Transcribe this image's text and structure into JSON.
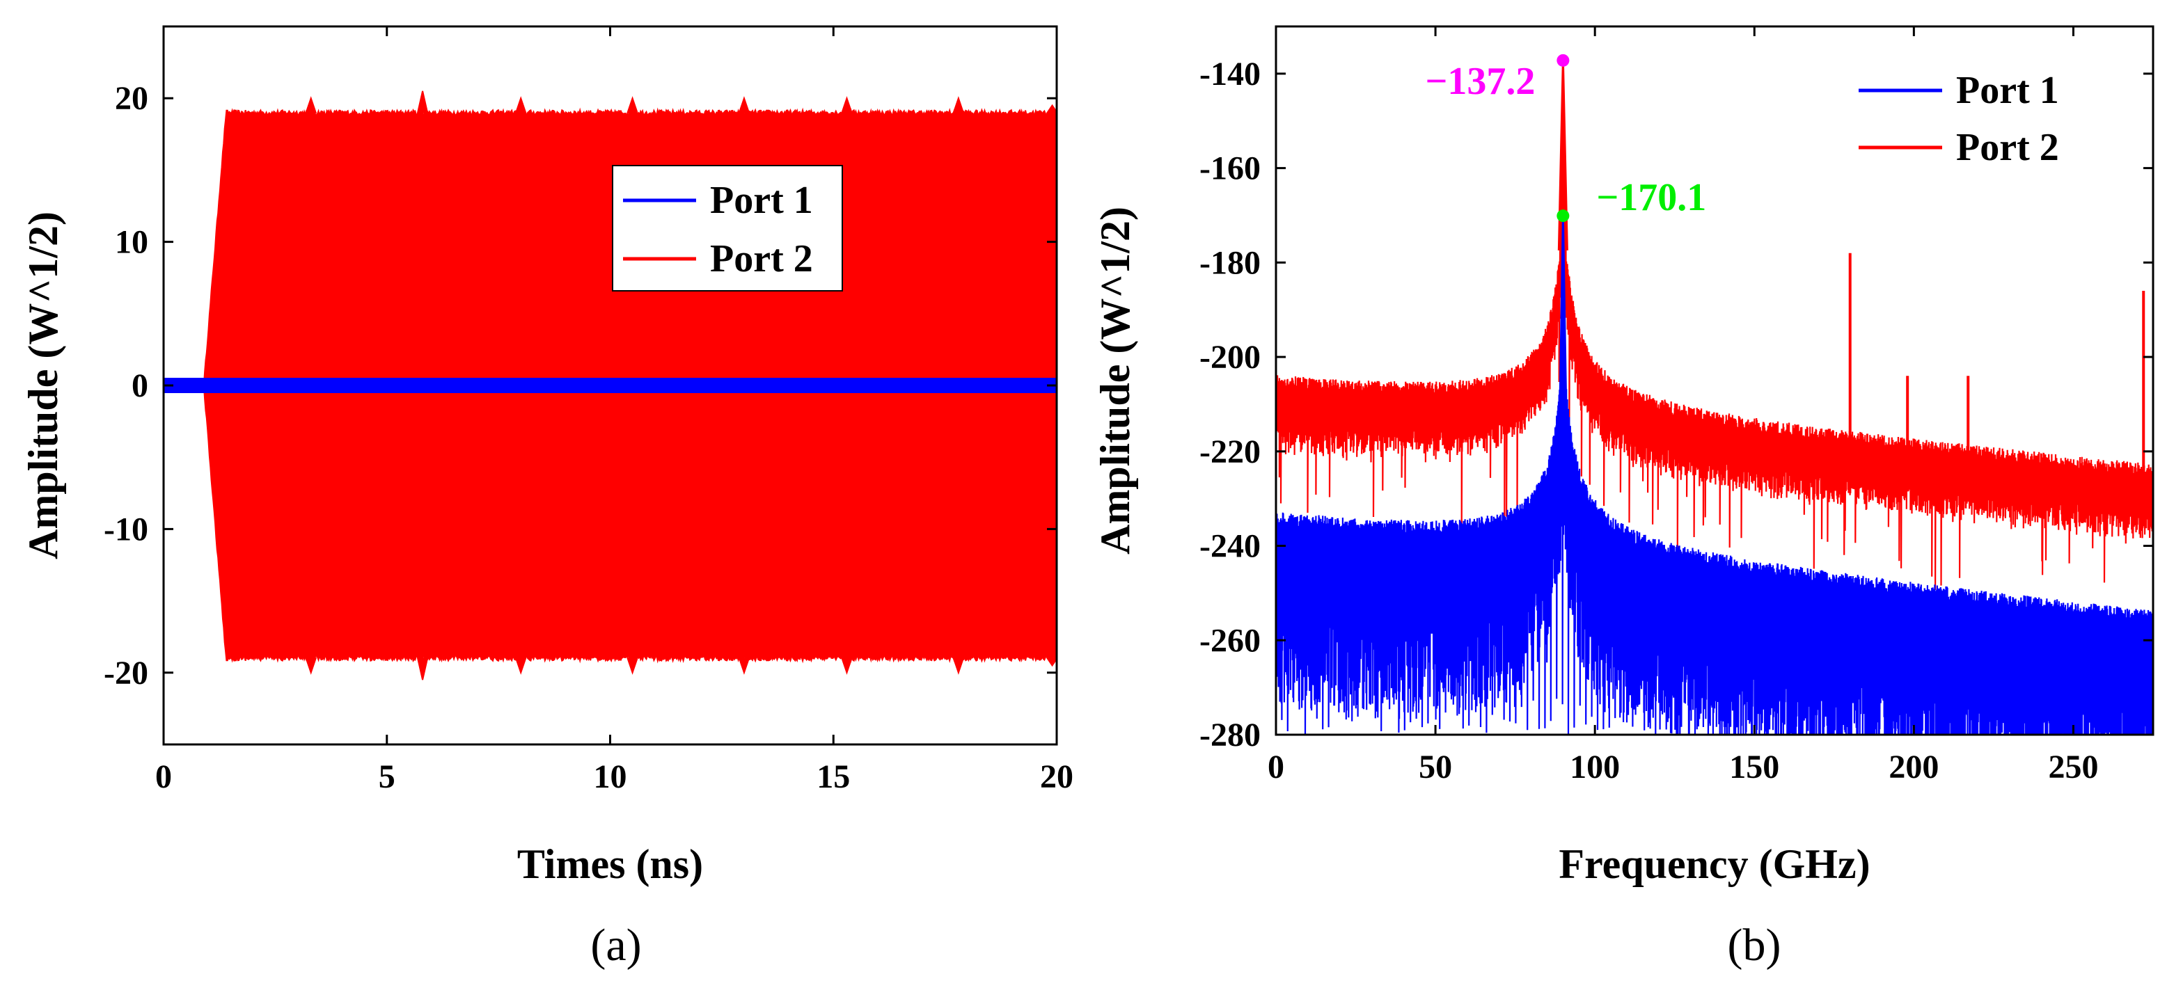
{
  "chart_data": [
    {
      "type": "line",
      "panel": "a",
      "caption": "(a)",
      "xlabel": "Times (ns)",
      "ylabel": "Amplitude (W^1/2)",
      "xlim": [
        0,
        20
      ],
      "ylim": [
        -25,
        25
      ],
      "xticks": [
        0,
        5,
        10,
        15,
        20
      ],
      "yticks": [
        -20,
        -10,
        0,
        10,
        20
      ],
      "legend_position": "upper-center",
      "series": [
        {
          "name": "Port 1",
          "color": "#0000ff",
          "envelope": {
            "start_ns": 0.0,
            "amplitude": 0.0
          }
        },
        {
          "name": "Port 2",
          "color": "#ff0000",
          "envelope": {
            "start_ns": 0.9,
            "rise_end_ns": 1.4,
            "amplitude": 19
          },
          "spikes": [
            {
              "x": 3.3,
              "y": 20
            },
            {
              "x": 5.8,
              "y": 20.5
            },
            {
              "x": 8.0,
              "y": 20
            },
            {
              "x": 10.5,
              "y": 20
            },
            {
              "x": 13.0,
              "y": 20
            },
            {
              "x": 15.3,
              "y": 20
            },
            {
              "x": 17.8,
              "y": 20
            },
            {
              "x": 19.9,
              "y": 19.5
            }
          ]
        }
      ]
    },
    {
      "type": "line",
      "panel": "b",
      "caption": "(b)",
      "xlabel": "Frequency (GHz)",
      "ylabel": "Amplitude (W^1/2)",
      "xlim": [
        0,
        275
      ],
      "ylim": [
        -280,
        -130
      ],
      "xticks": [
        0,
        50,
        100,
        150,
        200,
        250
      ],
      "yticks": [
        -280,
        -260,
        -240,
        -220,
        -200,
        -180,
        -160,
        -140
      ],
      "legend_position": "top-right",
      "series": [
        {
          "name": "Port 1",
          "color": "#0000ff",
          "peak": {
            "x": 90,
            "y": -170.1
          },
          "baseline_left": -236,
          "baseline_right": -256,
          "floor": -272
        },
        {
          "name": "Port 2",
          "color": "#ff0000",
          "peak": {
            "x": 90,
            "y": -137.2
          },
          "baseline_left": -207,
          "baseline_right": -225,
          "floor": -216,
          "spurs": [
            {
              "x": 180,
              "y": -178
            },
            {
              "x": 272,
              "y": -186
            },
            {
              "x": 198,
              "y": -204
            },
            {
              "x": 217,
              "y": -204
            }
          ]
        }
      ],
      "annotations": [
        {
          "text": "−137.2",
          "x": 90,
          "y": -137.2,
          "color": "#ff00ff"
        },
        {
          "text": "−170.1",
          "x": 90,
          "y": -170.1,
          "color": "#00ee00"
        }
      ]
    }
  ]
}
